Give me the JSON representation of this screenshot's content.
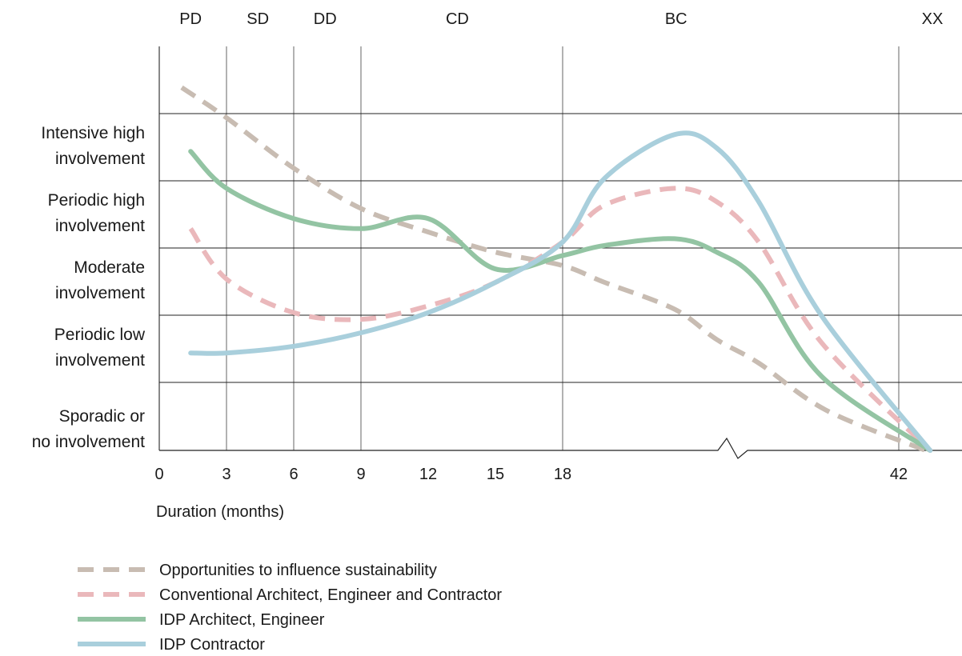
{
  "chart_data": {
    "type": "line",
    "title": "",
    "xlabel": "Duration (months)",
    "ylabel": "",
    "x_ticks": [
      0,
      3,
      6,
      9,
      12,
      15,
      18,
      42
    ],
    "x_tick_labels": [
      "0",
      "3",
      "6",
      "9",
      "12",
      "15",
      "18",
      "42"
    ],
    "x_axis_break": "between 18 and 42",
    "phases": [
      {
        "label": "PD",
        "x": 1.4
      },
      {
        "label": "SD",
        "x": 4.4
      },
      {
        "label": "DD",
        "x": 7.4
      },
      {
        "label": "CD",
        "x": 13.3
      },
      {
        "label": "BC",
        "x": 26.1
      },
      {
        "label": "XX",
        "x": 43.5
      }
    ],
    "y_levels": [
      {
        "value": 5,
        "label": [
          "Intensive high",
          "involvement"
        ]
      },
      {
        "value": 4,
        "label": [
          "Periodic high",
          "involvement"
        ]
      },
      {
        "value": 3,
        "label": [
          "Moderate",
          "involvement"
        ]
      },
      {
        "value": 2,
        "label": [
          "Periodic low",
          "involvement"
        ]
      },
      {
        "value": 1,
        "label": [
          "Sporadic or",
          "no involvement"
        ]
      }
    ],
    "ylim": [
      0.3,
      6.4
    ],
    "grid": true,
    "legend_position": "bottom-left",
    "series": [
      {
        "name": "Opportunities to influence sustainability",
        "color": "#c8bcb2",
        "dashed": true,
        "points": [
          [
            1.0,
            5.9
          ],
          [
            3,
            5.45
          ],
          [
            6,
            4.7
          ],
          [
            9,
            4.1
          ],
          [
            12,
            3.75
          ],
          [
            15,
            3.45
          ],
          [
            18,
            3.25
          ],
          [
            21,
            3.0
          ],
          [
            26,
            2.6
          ],
          [
            29,
            2.15
          ],
          [
            32,
            1.8
          ],
          [
            36.8,
            1.1
          ],
          [
            43.2,
            0.5
          ]
        ]
      },
      {
        "name": "Conventional Architect, Engineer and Contractor",
        "color": "#eab8bb",
        "dashed": true,
        "points": [
          [
            1.4,
            3.8
          ],
          [
            3,
            3.05
          ],
          [
            6,
            2.55
          ],
          [
            9,
            2.45
          ],
          [
            12,
            2.65
          ],
          [
            15,
            3.0
          ],
          [
            18,
            3.6
          ],
          [
            21,
            4.15
          ],
          [
            26,
            4.4
          ],
          [
            29,
            4.2
          ],
          [
            32,
            3.6
          ],
          [
            36.5,
            2.1
          ],
          [
            43.4,
            0.5
          ]
        ]
      },
      {
        "name": "IDP Architect, Engineer",
        "color": "#93c4a3",
        "dashed": false,
        "points": [
          [
            1.4,
            4.95
          ],
          [
            3,
            4.4
          ],
          [
            6,
            3.95
          ],
          [
            9,
            3.8
          ],
          [
            12,
            3.95
          ],
          [
            15,
            3.2
          ],
          [
            18,
            3.4
          ],
          [
            21,
            3.55
          ],
          [
            26,
            3.65
          ],
          [
            29,
            3.45
          ],
          [
            32,
            3.0
          ],
          [
            36.5,
            1.6
          ],
          [
            43.4,
            0.5
          ]
        ]
      },
      {
        "name": "IDP Contractor",
        "color": "#a9cfdc",
        "dashed": false,
        "points": [
          [
            1.4,
            1.95
          ],
          [
            3,
            1.95
          ],
          [
            6,
            2.05
          ],
          [
            9,
            2.25
          ],
          [
            12,
            2.55
          ],
          [
            15,
            3.0
          ],
          [
            18,
            3.6
          ],
          [
            21,
            4.55
          ],
          [
            26,
            5.2
          ],
          [
            29,
            5.0
          ],
          [
            32,
            4.2
          ],
          [
            36.5,
            2.5
          ],
          [
            43.4,
            0.5
          ]
        ]
      }
    ]
  }
}
